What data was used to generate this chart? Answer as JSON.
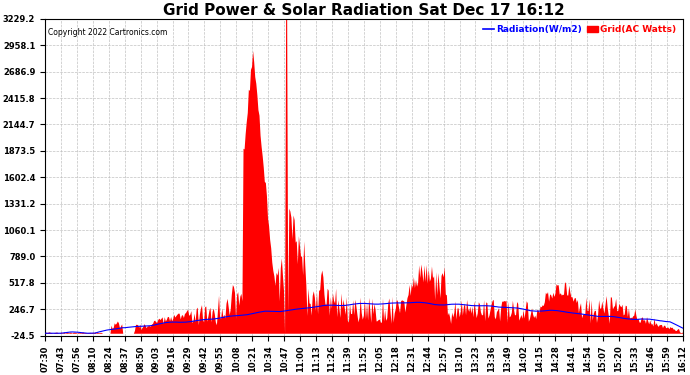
{
  "title": "Grid Power & Solar Radiation Sat Dec 17 16:12",
  "copyright": "Copyright 2022 Cartronics.com",
  "legend_radiation": "Radiation(W/m2)",
  "legend_grid": "Grid(AC Watts)",
  "legend_radiation_color": "blue",
  "legend_grid_color": "red",
  "yticks": [
    3229.2,
    2958.1,
    2686.9,
    2415.8,
    2144.7,
    1873.5,
    1602.4,
    1331.2,
    1060.1,
    789.0,
    517.8,
    246.7,
    -24.5
  ],
  "ymin": -24.5,
  "ymax": 3229.2,
  "background_color": "#ffffff",
  "plot_bg_color": "#ffffff",
  "grid_color": "#bbbbbb",
  "fill_color": "red",
  "line_color": "blue",
  "title_fontsize": 11,
  "tick_fontsize": 6,
  "xtick_labels": [
    "07:30",
    "07:43",
    "07:56",
    "08:10",
    "08:24",
    "08:37",
    "08:50",
    "09:03",
    "09:16",
    "09:29",
    "09:42",
    "09:55",
    "10:08",
    "10:21",
    "10:34",
    "10:47",
    "11:00",
    "11:13",
    "11:26",
    "11:39",
    "11:52",
    "12:05",
    "12:18",
    "12:31",
    "12:44",
    "12:57",
    "13:10",
    "13:23",
    "13:36",
    "13:49",
    "14:02",
    "14:15",
    "14:28",
    "14:41",
    "14:54",
    "15:07",
    "15:20",
    "15:33",
    "15:46",
    "15:59",
    "16:12"
  ]
}
